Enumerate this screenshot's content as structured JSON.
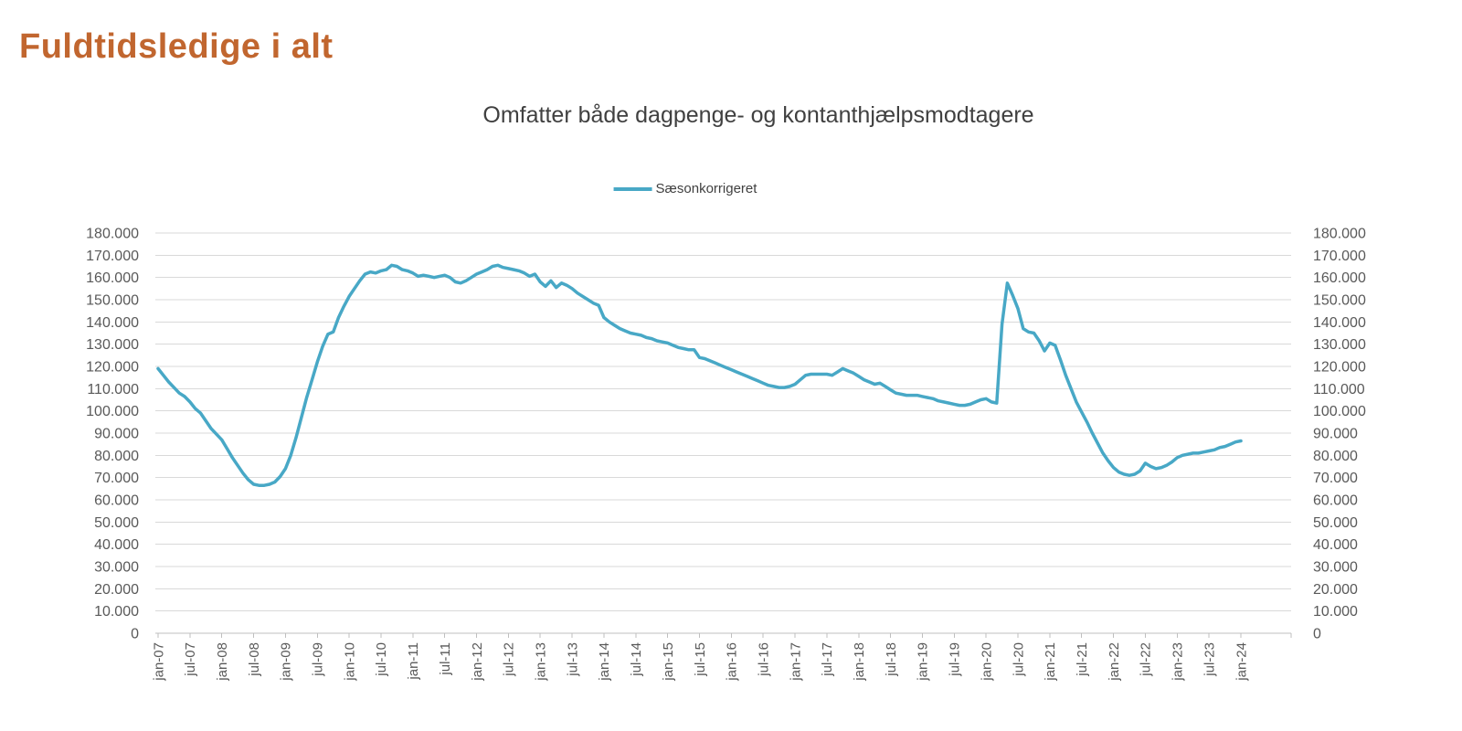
{
  "page": {
    "title": "Fuldtidsledige i alt"
  },
  "colors": {
    "page_title": "#C1662F",
    "chart_text": "#404040",
    "axis_text": "#595959",
    "gridline": "#D9D9D9",
    "axis_line": "#BFBFBF",
    "series_line": "#48A8C6",
    "background": "#FFFFFF"
  },
  "chart_data": {
    "type": "line",
    "title": "Omfatter både dagpenge- og kontanthjælpsmodtagere",
    "legend_position": "top-center",
    "grid": "horizontal",
    "axes_mirrored": true,
    "ylim": [
      0,
      180000
    ],
    "y_tick_step": 10000,
    "y_tick_labels": [
      "0",
      "10.000",
      "20.000",
      "30.000",
      "40.000",
      "50.000",
      "60.000",
      "70.000",
      "80.000",
      "90.000",
      "100.000",
      "110.000",
      "120.000",
      "130.000",
      "140.000",
      "150.000",
      "160.000",
      "170.000",
      "180.000"
    ],
    "x_tick_labels": [
      "jan-07",
      "jul-07",
      "jan-08",
      "jul-08",
      "jan-09",
      "jul-09",
      "jan-10",
      "jul-10",
      "jan-11",
      "jul-11",
      "jan-12",
      "jul-12",
      "jan-13",
      "jul-13",
      "jan-14",
      "jul-14",
      "jan-15",
      "jul-15",
      "jan-16",
      "jul-16",
      "jan-17",
      "jul-17",
      "jan-18",
      "jul-18",
      "jan-19",
      "jul-19",
      "jan-20",
      "jul-20",
      "jan-21",
      "jul-21",
      "jan-22",
      "jul-22",
      "jan-23",
      "jul-23",
      "jan-24"
    ],
    "x_unit": "month",
    "x_start": "jan-07",
    "x_end": "jan-24",
    "series": [
      {
        "name": "Sæsonkorrigeret",
        "color": "#48A8C6",
        "values": [
          119000,
          116000,
          113000,
          110500,
          108000,
          106500,
          104000,
          101000,
          99000,
          95500,
          92000,
          89500,
          87000,
          83000,
          79000,
          75500,
          72000,
          69000,
          67000,
          66500,
          66500,
          67000,
          68000,
          70500,
          74000,
          80000,
          88000,
          97000,
          106000,
          114000,
          122000,
          129000,
          134500,
          135500,
          142000,
          147000,
          151500,
          155000,
          158500,
          161500,
          162500,
          162000,
          163000,
          163500,
          165500,
          165000,
          163500,
          163000,
          162000,
          160500,
          161000,
          160500,
          160000,
          160500,
          161000,
          160000,
          158000,
          157500,
          158500,
          160000,
          161500,
          162500,
          163500,
          165000,
          165500,
          164500,
          164000,
          163500,
          163000,
          162000,
          160500,
          161500,
          158000,
          156000,
          158500,
          155500,
          157500,
          156500,
          155000,
          153000,
          151500,
          150000,
          148500,
          147500,
          142000,
          140000,
          138500,
          137000,
          136000,
          135000,
          134500,
          134000,
          133000,
          132500,
          131500,
          131000,
          130500,
          129500,
          128500,
          128000,
          127500,
          127500,
          124000,
          123500,
          122500,
          121500,
          120500,
          119500,
          118500,
          117500,
          116500,
          115500,
          114500,
          113500,
          112500,
          111500,
          111000,
          110500,
          110500,
          111000,
          112000,
          114000,
          116000,
          116500,
          116500,
          116500,
          116500,
          116000,
          117500,
          119000,
          118000,
          117000,
          115500,
          114000,
          113000,
          112000,
          112500,
          111000,
          109500,
          108000,
          107500,
          107000,
          107000,
          107000,
          106500,
          106000,
          105500,
          104500,
          104000,
          103500,
          103000,
          102500,
          102500,
          103000,
          104000,
          105000,
          105500,
          104000,
          103500,
          139000,
          157500,
          152000,
          146000,
          137000,
          135500,
          135000,
          131500,
          127000,
          130500,
          129500,
          123000,
          116000,
          110000,
          104000,
          99500,
          95000,
          90000,
          85500,
          81000,
          77500,
          74500,
          72500,
          71500,
          71000,
          71500,
          73000,
          76500,
          75000,
          74000,
          74500,
          75500,
          77000,
          79000,
          80000,
          80500,
          81000,
          81000,
          81500,
          82000,
          82500,
          83500,
          84000,
          85000,
          86000,
          86500
        ]
      }
    ]
  }
}
